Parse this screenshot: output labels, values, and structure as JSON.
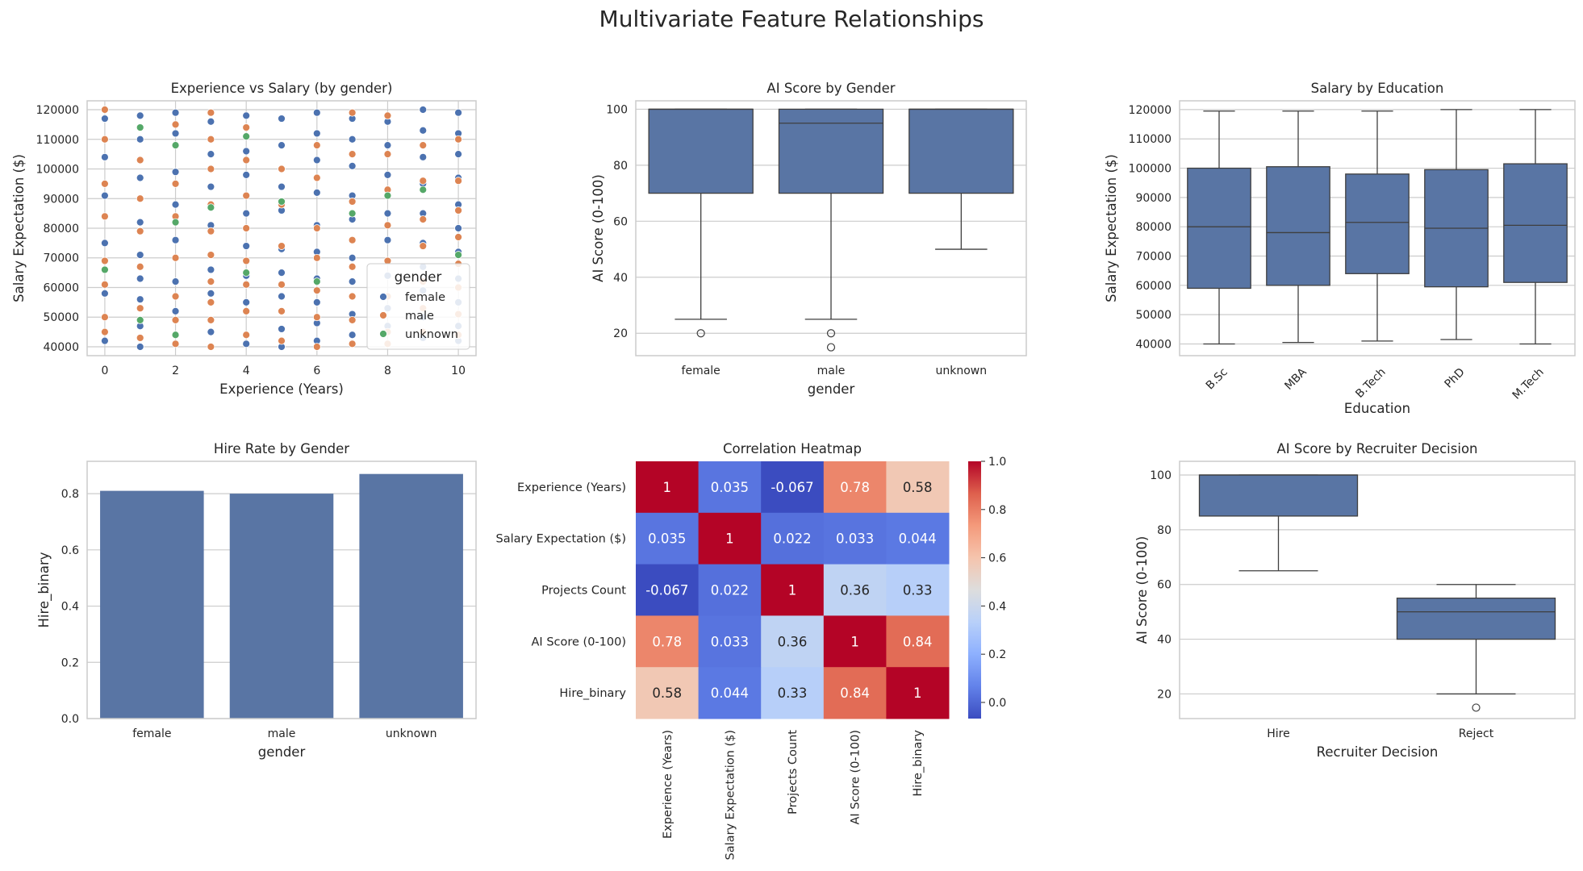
{
  "suptitle": "Multivariate Feature Relationships",
  "colors": {
    "bar": "#5975a4",
    "female": "#4c72b0",
    "male": "#dd8452",
    "unknown": "#55a868",
    "grid": "#cccccc",
    "frame": "#cccccc",
    "line": "#3f3f3f"
  },
  "chart_data": [
    {
      "id": "scatter",
      "type": "scatter",
      "title": "Experience vs Salary (by gender)",
      "xlabel": "Experience (Years)",
      "ylabel": "Salary Expectation ($)",
      "xlim": [
        -0.5,
        10.5
      ],
      "ylim": [
        37000,
        123000
      ],
      "xticks": [
        "0",
        "2",
        "4",
        "6",
        "8",
        "10"
      ],
      "xtick_values": [
        0,
        2,
        4,
        6,
        8,
        10
      ],
      "yticks": [
        "40000",
        "50000",
        "60000",
        "70000",
        "80000",
        "90000",
        "100000",
        "110000",
        "120000"
      ],
      "ytick_values": [
        40000,
        50000,
        60000,
        70000,
        80000,
        90000,
        100000,
        110000,
        120000
      ],
      "grid": true,
      "legend": {
        "title": "gender",
        "position": "lower right",
        "entries": [
          "female",
          "male",
          "unknown"
        ]
      },
      "series": [
        {
          "name": "female",
          "x": [
            0,
            0,
            0,
            0,
            0,
            0,
            1,
            1,
            1,
            1,
            1,
            1,
            1,
            1,
            1,
            2,
            2,
            2,
            2,
            2,
            2,
            2,
            2,
            3,
            3,
            3,
            3,
            3,
            3,
            3,
            4,
            4,
            4,
            4,
            4,
            4,
            4,
            4,
            5,
            5,
            5,
            5,
            5,
            5,
            5,
            5,
            5,
            6,
            6,
            6,
            6,
            6,
            6,
            6,
            6,
            6,
            6,
            7,
            7,
            7,
            7,
            7,
            7,
            7,
            7,
            7,
            8,
            8,
            8,
            8,
            8,
            8,
            8,
            8,
            9,
            9,
            9,
            9,
            9,
            9,
            9,
            9,
            9,
            9,
            10,
            10,
            10,
            10,
            10,
            10,
            10,
            10,
            10,
            10,
            10
          ],
          "y": [
            42000,
            58000,
            75000,
            91000,
            104000,
            117000,
            40000,
            47000,
            56000,
            63000,
            71000,
            82000,
            97000,
            110000,
            118000,
            44000,
            52000,
            62000,
            76000,
            88000,
            99000,
            112000,
            119000,
            45000,
            58000,
            66000,
            81000,
            94000,
            105000,
            116000,
            41000,
            55000,
            64000,
            74000,
            85000,
            98000,
            106000,
            118000,
            40000,
            46000,
            57000,
            65000,
            73000,
            86000,
            94000,
            108000,
            117000,
            42000,
            48000,
            55000,
            63000,
            72000,
            81000,
            92000,
            103000,
            112000,
            119000,
            44000,
            51000,
            62000,
            70000,
            83000,
            91000,
            101000,
            110000,
            117000,
            47000,
            53000,
            64000,
            76000,
            85000,
            98000,
            108000,
            116000,
            43000,
            50000,
            59000,
            67000,
            75000,
            85000,
            95000,
            104000,
            113000,
            120000,
            42000,
            47000,
            55000,
            63000,
            72000,
            80000,
            88000,
            97000,
            105000,
            112000,
            119000
          ]
        },
        {
          "name": "male",
          "x": [
            0,
            0,
            0,
            0,
            0,
            0,
            0,
            0,
            1,
            1,
            1,
            1,
            1,
            1,
            2,
            2,
            2,
            2,
            2,
            2,
            2,
            3,
            3,
            3,
            3,
            3,
            3,
            3,
            3,
            3,
            3,
            4,
            4,
            4,
            4,
            4,
            4,
            4,
            4,
            5,
            5,
            5,
            5,
            5,
            5,
            6,
            6,
            6,
            6,
            6,
            6,
            6,
            7,
            7,
            7,
            7,
            7,
            7,
            7,
            7,
            8,
            8,
            8,
            8,
            8,
            8,
            8,
            8,
            9,
            9,
            9,
            9,
            9,
            9,
            9,
            10,
            10,
            10,
            10,
            10,
            10,
            10,
            10
          ],
          "y": [
            45000,
            50000,
            61000,
            69000,
            84000,
            95000,
            110000,
            120000,
            43000,
            53000,
            67000,
            79000,
            90000,
            103000,
            41000,
            49000,
            57000,
            70000,
            84000,
            95000,
            115000,
            40000,
            49000,
            55000,
            62000,
            71000,
            79000,
            88000,
            100000,
            110000,
            119000,
            44000,
            52000,
            61000,
            69000,
            80000,
            91000,
            103000,
            114000,
            42000,
            52000,
            61000,
            74000,
            88000,
            100000,
            40000,
            50000,
            59000,
            70000,
            80000,
            97000,
            108000,
            41000,
            49000,
            57000,
            67000,
            76000,
            89000,
            105000,
            119000,
            41000,
            45000,
            57000,
            69000,
            81000,
            93000,
            105000,
            118000,
            45000,
            53000,
            62000,
            74000,
            83000,
            96000,
            108000,
            44000,
            51000,
            60000,
            68000,
            77000,
            86000,
            96000,
            110000
          ]
        },
        {
          "name": "unknown",
          "x": [
            0,
            1,
            1,
            2,
            2,
            2,
            3,
            4,
            4,
            5,
            6,
            7,
            8,
            9,
            10
          ],
          "y": [
            66000,
            49000,
            114000,
            44000,
            82000,
            108000,
            87000,
            65000,
            111000,
            89000,
            62000,
            85000,
            91000,
            93000,
            71000
          ]
        }
      ]
    },
    {
      "id": "box_ai_gender",
      "type": "box",
      "title": "AI Score by Gender",
      "xlabel": "gender",
      "ylabel": "AI Score (0-100)",
      "ylim": [
        12,
        103
      ],
      "yticks": [
        "20",
        "40",
        "60",
        "80",
        "100"
      ],
      "ytick_values": [
        20,
        40,
        60,
        80,
        100
      ],
      "categories": [
        "female",
        "male",
        "unknown"
      ],
      "boxes": [
        {
          "whislo": 25,
          "q1": 70,
          "med": 100,
          "q3": 100,
          "whishi": 100,
          "fliers": [
            20
          ]
        },
        {
          "whislo": 25,
          "q1": 70,
          "med": 95,
          "q3": 100,
          "whishi": 100,
          "fliers": [
            20,
            15
          ]
        },
        {
          "whislo": 50,
          "q1": 70,
          "med": 100,
          "q3": 100,
          "whishi": 100,
          "fliers": []
        }
      ]
    },
    {
      "id": "box_salary_edu",
      "type": "box",
      "title": "Salary by Education",
      "xlabel": "Education",
      "ylabel": "Salary Expectation ($)",
      "ylim": [
        36000,
        123000
      ],
      "yticks": [
        "40000",
        "50000",
        "60000",
        "70000",
        "80000",
        "90000",
        "100000",
        "110000",
        "120000"
      ],
      "ytick_values": [
        40000,
        50000,
        60000,
        70000,
        80000,
        90000,
        100000,
        110000,
        120000
      ],
      "categories": [
        "B.Sc",
        "MBA",
        "B.Tech",
        "PhD",
        "M.Tech"
      ],
      "rotate_xticks": 45,
      "boxes": [
        {
          "whislo": 40000,
          "q1": 59000,
          "med": 80000,
          "q3": 100000,
          "whishi": 119500,
          "fliers": []
        },
        {
          "whislo": 40500,
          "q1": 60000,
          "med": 78000,
          "q3": 100500,
          "whishi": 119500,
          "fliers": []
        },
        {
          "whislo": 41000,
          "q1": 64000,
          "med": 81500,
          "q3": 98000,
          "whishi": 119500,
          "fliers": []
        },
        {
          "whislo": 41500,
          "q1": 59500,
          "med": 79500,
          "q3": 99500,
          "whishi": 120000,
          "fliers": []
        },
        {
          "whislo": 40000,
          "q1": 61000,
          "med": 80500,
          "q3": 101500,
          "whishi": 120000,
          "fliers": []
        }
      ]
    },
    {
      "id": "bar_hire",
      "type": "bar",
      "title": "Hire Rate by Gender",
      "xlabel": "gender",
      "ylabel": "Hire_binary",
      "ylim": [
        0,
        0.915
      ],
      "yticks": [
        "0.0",
        "0.2",
        "0.4",
        "0.6",
        "0.8"
      ],
      "ytick_values": [
        0,
        0.2,
        0.4,
        0.6,
        0.8
      ],
      "categories": [
        "female",
        "male",
        "unknown"
      ],
      "values": [
        0.81,
        0.8,
        0.87
      ]
    },
    {
      "id": "heatmap",
      "type": "heatmap",
      "title": "Correlation Heatmap",
      "labels": [
        "Experience (Years)",
        "Salary Expectation ($)",
        "Projects Count",
        "AI Score (0-100)",
        "Hire_binary"
      ],
      "matrix": [
        [
          1,
          0.035,
          -0.067,
          0.78,
          0.58
        ],
        [
          0.035,
          1,
          0.022,
          0.033,
          0.044
        ],
        [
          -0.067,
          0.022,
          1,
          0.36,
          0.33
        ],
        [
          0.78,
          0.033,
          0.36,
          1,
          0.84
        ],
        [
          0.58,
          0.044,
          0.33,
          0.84,
          1
        ]
      ],
      "annotations": [
        [
          "1",
          "0.035",
          "-0.067",
          "0.78",
          "0.58"
        ],
        [
          "0.035",
          "1",
          "0.022",
          "0.033",
          "0.044"
        ],
        [
          "-0.067",
          "0.022",
          "1",
          "0.36",
          "0.33"
        ],
        [
          "0.78",
          "0.033",
          "0.36",
          "1",
          "0.84"
        ],
        [
          "0.58",
          "0.044",
          "0.33",
          "0.84",
          "1"
        ]
      ],
      "colormap": "coolwarm",
      "vmin": -0.067,
      "vmax": 1,
      "colorbar_ticks": [
        "0.0",
        "0.2",
        "0.4",
        "0.6",
        "0.8",
        "1.0"
      ],
      "colorbar_tick_values": [
        0,
        0.2,
        0.4,
        0.6,
        0.8,
        1.0
      ]
    },
    {
      "id": "box_ai_decision",
      "type": "box",
      "title": "AI Score by Recruiter Decision",
      "xlabel": "Recruiter Decision",
      "ylabel": "AI Score (0-100)",
      "ylim": [
        11,
        105
      ],
      "yticks": [
        "20",
        "40",
        "60",
        "80",
        "100"
      ],
      "ytick_values": [
        20,
        40,
        60,
        80,
        100
      ],
      "categories": [
        "Hire",
        "Reject"
      ],
      "boxes": [
        {
          "whislo": 65,
          "q1": 85,
          "med": 100,
          "q3": 100,
          "whishi": 100,
          "fliers": []
        },
        {
          "whislo": 20,
          "q1": 40,
          "med": 50,
          "q3": 55,
          "whishi": 60,
          "fliers": [
            15
          ]
        }
      ]
    }
  ]
}
